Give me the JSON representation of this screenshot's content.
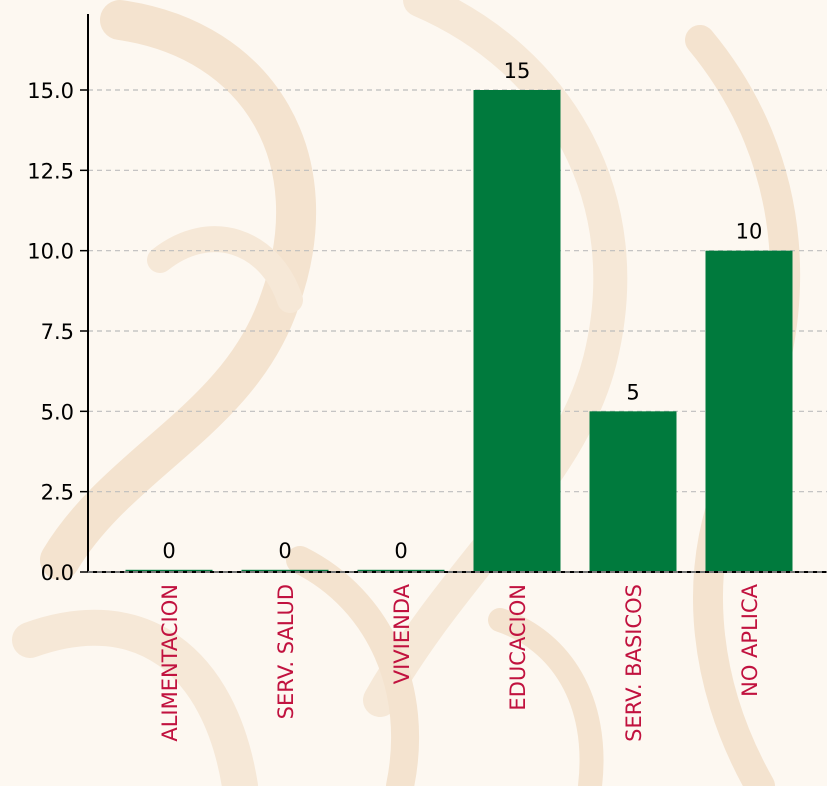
{
  "chart_data": {
    "type": "bar",
    "categories": [
      "ALIMENTACION",
      "SERV. SALUD",
      "VIVIENDA",
      "EDUCACION",
      "SERV. BASICOS",
      "NO APLICA"
    ],
    "values": [
      0,
      0,
      0,
      15,
      5,
      10
    ],
    "value_labels": [
      "0",
      "0",
      "0",
      "15",
      "5",
      "10"
    ],
    "title": "",
    "xlabel": "",
    "ylabel": "",
    "ylim": [
      0,
      17
    ],
    "yticks": [
      "0.0",
      "2.5",
      "5.0",
      "7.5",
      "10.0",
      "12.5",
      "15.0"
    ],
    "grid": "horizontal-dashed",
    "bar_color": "#007a3d",
    "category_label_color": "#c1123f",
    "background_watermark": "eagle-emblem-pattern"
  }
}
